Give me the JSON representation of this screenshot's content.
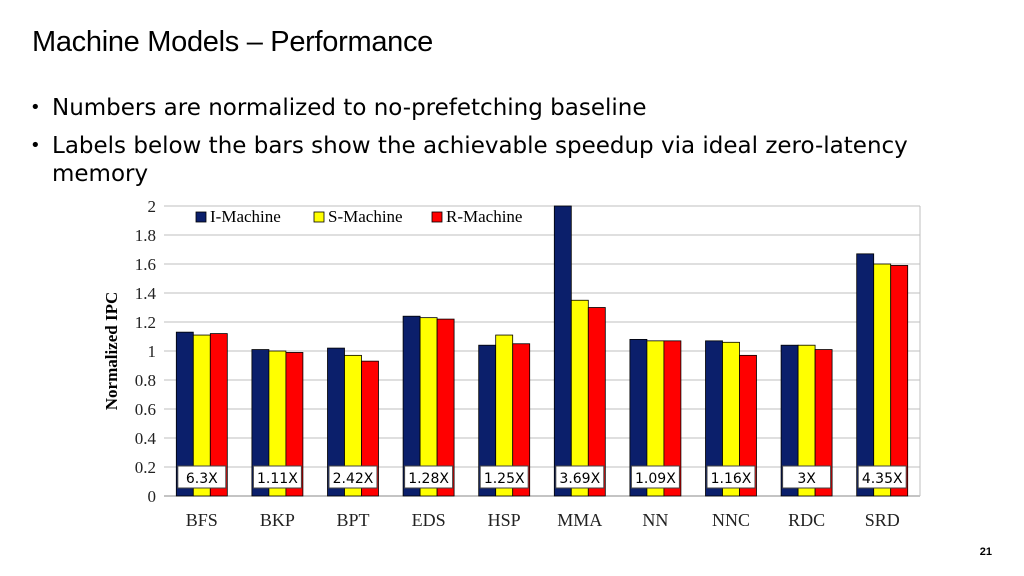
{
  "slide": {
    "title": "Machine Models – Performance",
    "bullets": [
      "Numbers are normalized to no-prefetching baseline",
      "Labels below the bars show the achievable speedup via ideal zero-latency memory"
    ],
    "slide_number": "21"
  },
  "chart_data": {
    "type": "bar",
    "title": "",
    "xlabel": "",
    "ylabel": "Normalized IPC",
    "ylim": [
      0,
      2
    ],
    "yticks": [
      "0",
      "0.2",
      "0.4",
      "0.6",
      "0.8",
      "1",
      "1.2",
      "1.4",
      "1.6",
      "1.8",
      "2"
    ],
    "grid": true,
    "legend_position": "top-left",
    "categories": [
      "BFS",
      "BKP",
      "BPT",
      "EDS",
      "HSP",
      "MMA",
      "NN",
      "NNC",
      "RDC",
      "SRD"
    ],
    "series": [
      {
        "name": "I-Machine",
        "color": "#0b1f6b",
        "values": [
          1.13,
          1.01,
          1.02,
          1.24,
          1.04,
          2.0,
          1.08,
          1.07,
          1.04,
          1.67
        ]
      },
      {
        "name": "S-Machine",
        "color": "#ffff00",
        "values": [
          1.11,
          1.0,
          0.97,
          1.23,
          1.11,
          1.35,
          1.07,
          1.06,
          1.04,
          1.6
        ]
      },
      {
        "name": "R-Machine",
        "color": "#ff0000",
        "values": [
          1.12,
          0.99,
          0.93,
          1.22,
          1.05,
          1.3,
          1.07,
          0.97,
          1.01,
          1.59
        ]
      }
    ],
    "annotations": [
      "6.3X",
      "1.11X",
      "2.42X",
      "1.28X",
      "1.25X",
      "3.69X",
      "1.09X",
      "1.16X",
      "3X",
      "4.35X"
    ]
  }
}
